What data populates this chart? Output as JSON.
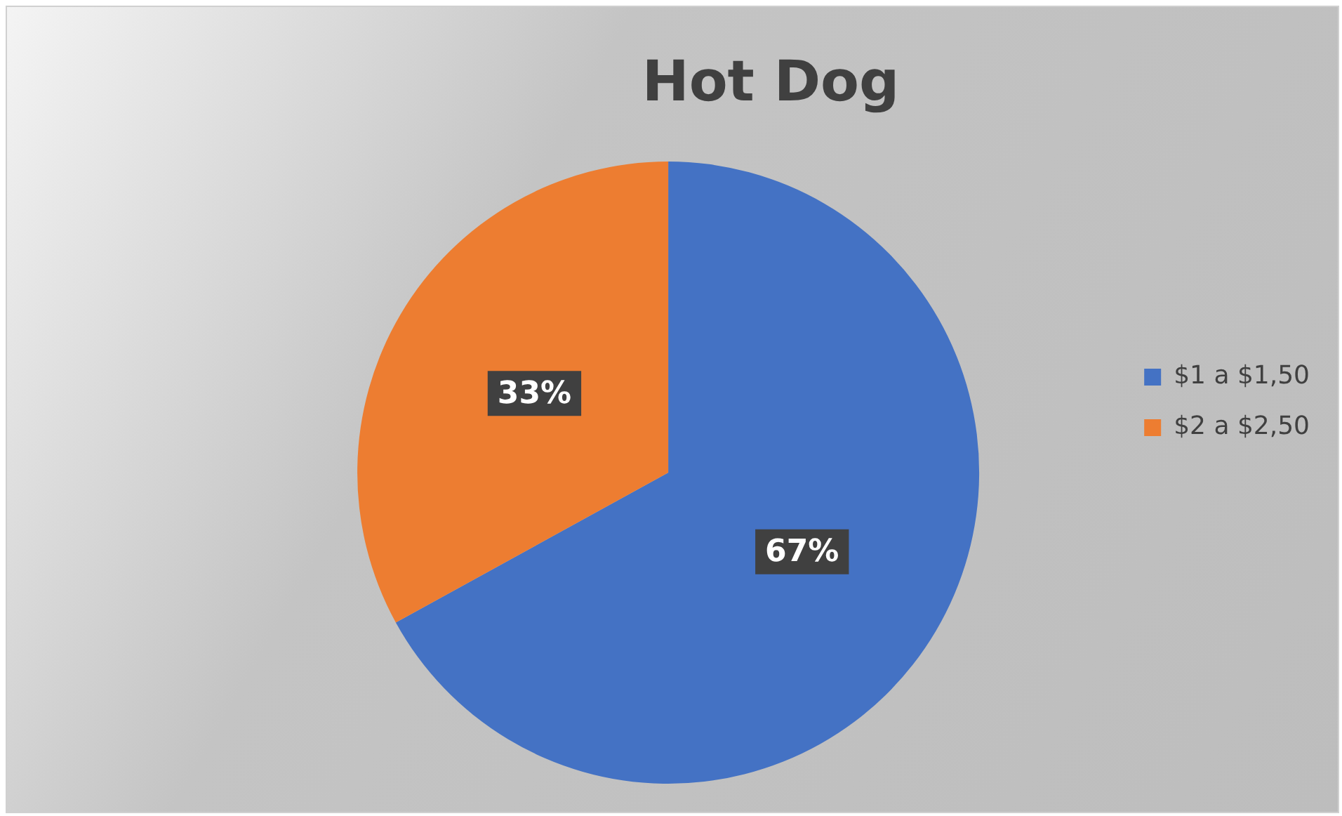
{
  "chart_data": {
    "type": "pie",
    "title": "Hot Dog",
    "categories": [
      "$1 a $1,50",
      "$2 a $2,50"
    ],
    "values": [
      67,
      33
    ],
    "colors": [
      "#4472c4",
      "#ed7d31"
    ],
    "value_labels": [
      "67%",
      "33%"
    ],
    "legend": "right"
  }
}
